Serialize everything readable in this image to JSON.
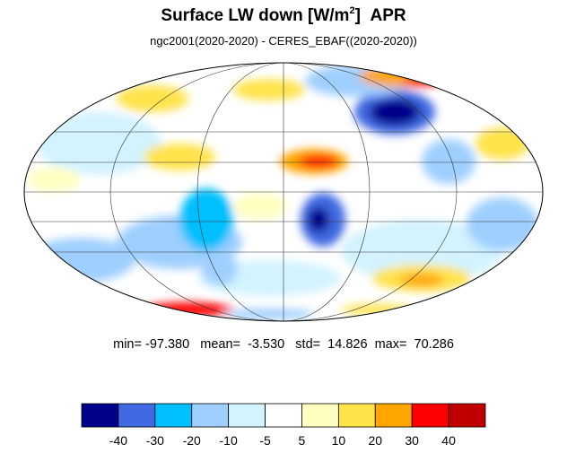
{
  "title": {
    "main": "Surface LW down [W/m",
    "superscript": "2",
    "close": "]",
    "month": "APR"
  },
  "subtitle": "ngc2001(2020-2020) - CERES_EBAF((2020-2020))",
  "map": {
    "projection": "mollweide",
    "graticule": true,
    "field": "Surface LW down difference"
  },
  "stats": {
    "min_label": "min=",
    "min": "-97.380",
    "mean_label": "mean=",
    "mean": "-3.530",
    "std_label": "std=",
    "std": "14.826",
    "max_label": "max=",
    "max": "70.286"
  },
  "colorbar": {
    "colors": [
      "#00008b",
      "#4169e1",
      "#00bfff",
      "#9fcfff",
      "#d2f3ff",
      "#ffffff",
      "#ffffc2",
      "#ffe34b",
      "#ffa500",
      "#ff0000",
      "#c00000"
    ],
    "tick_labels": [
      "-40",
      "-30",
      "-20",
      "-10",
      "-5",
      "5",
      "10",
      "20",
      "30",
      "40"
    ]
  },
  "chart_data": {
    "type": "heatmap",
    "title": "Surface LW down [W/m2]  APR",
    "subtitle": "ngc2001(2020-2020) - CERES_EBAF((2020-2020))",
    "levels": [
      -40,
      -30,
      -20,
      -10,
      -5,
      5,
      10,
      20,
      30,
      40
    ],
    "min": -97.38,
    "mean": -3.53,
    "std": 14.826,
    "max": 70.286
  }
}
